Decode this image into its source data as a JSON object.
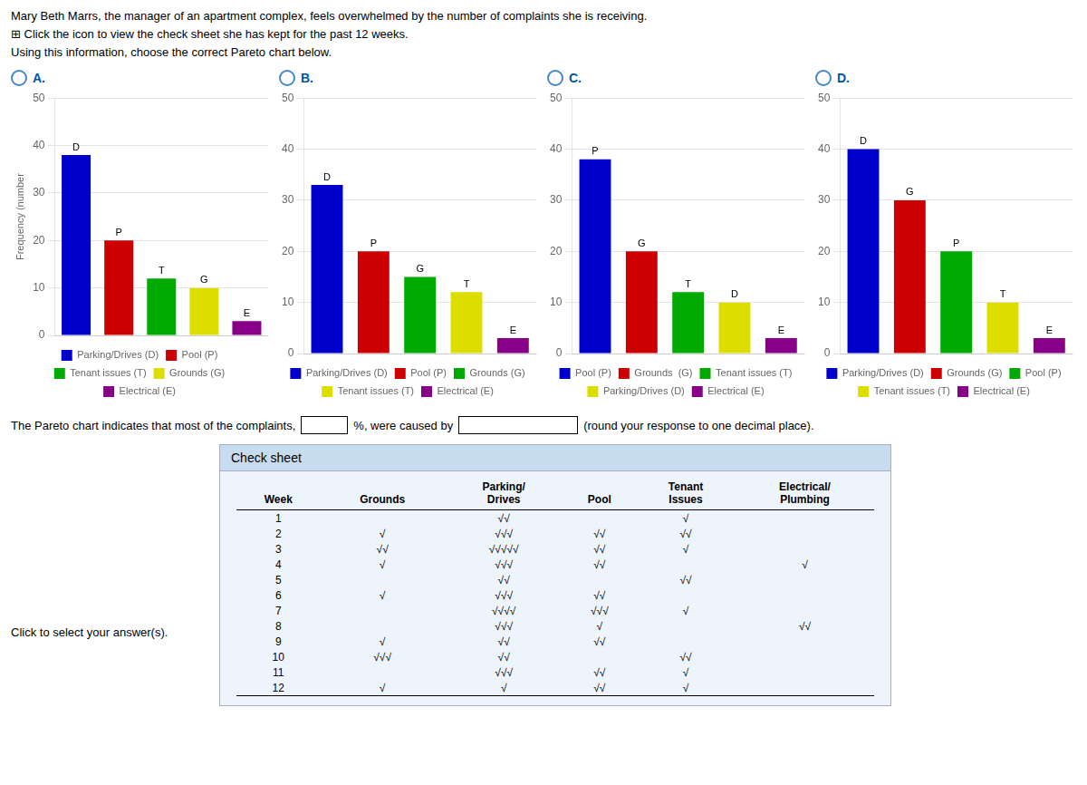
{
  "chart_data": [
    {
      "type": "bar",
      "title": "A.",
      "categories": [
        "D",
        "P",
        "T",
        "G",
        "E"
      ],
      "series": [
        {
          "name": "Parking/Drives (D)",
          "color": "#0000CC",
          "values": [
            38,
            null,
            null,
            null,
            null
          ]
        },
        {
          "name": "Pool (P)",
          "color": "#CC0000",
          "values": [
            null,
            20,
            null,
            null,
            null
          ]
        },
        {
          "name": "Tenant issues (T)",
          "color": "#00AA00",
          "values": [
            null,
            null,
            12,
            null,
            null
          ]
        },
        {
          "name": "Grounds (G)",
          "color": "#DDDD00",
          "values": [
            null,
            null,
            null,
            10,
            null
          ]
        },
        {
          "name": "Electrical (E)",
          "color": "#880088",
          "values": [
            null,
            null,
            null,
            null,
            3
          ]
        }
      ],
      "ylabel": "Frequency (number",
      "ylim": [
        0,
        50
      ],
      "yticks": [
        0,
        10,
        20,
        30,
        40,
        50
      ],
      "grid": true,
      "legend": "bottom",
      "tick_labels": "y"
    },
    {
      "type": "bar",
      "title": "B.",
      "categories": [
        "D",
        "P",
        "G",
        "T",
        "E"
      ],
      "series": [
        {
          "name": "Parking/Drives (D)",
          "color": "#0000CC",
          "values": [
            33,
            null,
            null,
            null,
            null
          ]
        },
        {
          "name": "Pool (P)",
          "color": "#CC0000",
          "values": [
            null,
            20,
            null,
            null,
            null
          ]
        },
        {
          "name": "Grounds (G)",
          "color": "#00AA00",
          "values": [
            null,
            null,
            15,
            null,
            null
          ]
        },
        {
          "name": "Tenant issues (T)",
          "color": "#DDDD00",
          "values": [
            null,
            null,
            null,
            12,
            null
          ]
        },
        {
          "name": "Electrical (E)",
          "color": "#880088",
          "values": [
            null,
            null,
            null,
            null,
            3
          ]
        }
      ],
      "ylim": [
        0,
        50
      ],
      "yticks": [
        0,
        10,
        20,
        30,
        40,
        50
      ],
      "grid": true,
      "legend": "bottom",
      "tick_labels": "y"
    },
    {
      "type": "bar",
      "title": "C.",
      "categories": [
        "P",
        "G",
        "T",
        "D",
        "E"
      ],
      "series": [
        {
          "name": "Pool (P)",
          "color": "#0000CC",
          "values": [
            38,
            null,
            null,
            null,
            null
          ]
        },
        {
          "name": "Grounds  (G)",
          "color": "#CC0000",
          "values": [
            null,
            20,
            null,
            null,
            null
          ]
        },
        {
          "name": "Tenant issues (T)",
          "color": "#00AA00",
          "values": [
            null,
            null,
            12,
            null,
            null
          ]
        },
        {
          "name": "Parking/Drives (D)",
          "color": "#DDDD00",
          "values": [
            null,
            null,
            null,
            10,
            null
          ]
        },
        {
          "name": "Electrical (E)",
          "color": "#880088",
          "values": [
            null,
            null,
            null,
            null,
            3
          ]
        }
      ],
      "ylim": [
        0,
        50
      ],
      "yticks": [
        0,
        10,
        20,
        30,
        40,
        50
      ],
      "grid": true,
      "legend": "bottom",
      "tick_labels": "y"
    },
    {
      "type": "bar",
      "title": "D.",
      "categories": [
        "D",
        "G",
        "P",
        "T",
        "E"
      ],
      "series": [
        {
          "name": "Parking/Drives (D)",
          "color": "#0000CC",
          "values": [
            40,
            null,
            null,
            null,
            null
          ]
        },
        {
          "name": "Grounds (G)",
          "color": "#CC0000",
          "values": [
            null,
            30,
            null,
            null,
            null
          ]
        },
        {
          "name": "Pool (P)",
          "color": "#00AA00",
          "values": [
            null,
            null,
            20,
            null,
            null
          ]
        },
        {
          "name": "Tenant issues (T)",
          "color": "#DDDD00",
          "values": [
            null,
            null,
            null,
            10,
            null
          ]
        },
        {
          "name": "Electrical (E)",
          "color": "#880088",
          "values": [
            null,
            null,
            null,
            null,
            3
          ]
        }
      ],
      "ylim": [
        0,
        50
      ],
      "yticks": [
        0,
        10,
        20,
        30,
        40,
        50
      ],
      "grid": true,
      "legend": "bottom",
      "tick_labels": "y"
    }
  ],
  "intro": [
    "Mary Beth Marrs, the manager of an apartment complex, feels overwhelmed by the number of complaints she is receiving.",
    "⊞  Click the icon to view the check sheet she has kept for the past 12 weeks.",
    "Using this information, choose the correct Pareto chart below."
  ],
  "statement": [
    "The Pareto chart indicates that most of the complaints,",
    "%, were caused by",
    "(round your response to one decimal place)."
  ],
  "footer": "Click to select your answer(s).",
  "check_sheet": {
    "title": "Check sheet",
    "headers": [
      "Week",
      "Grounds",
      "Parking/\nDrives",
      "Pool",
      "Tenant\nIssues",
      "Electrical/\nPlumbing"
    ],
    "rows": [
      [
        "1",
        "",
        "√√",
        "",
        "√",
        ""
      ],
      [
        "2",
        "√",
        "√√√",
        "√√",
        "√√",
        ""
      ],
      [
        "3",
        "√√",
        "√√√√√",
        "√√",
        "√",
        ""
      ],
      [
        "4",
        "√",
        "√√√",
        "√√",
        "",
        "√"
      ],
      [
        "5",
        "",
        "√√",
        "",
        "√√",
        ""
      ],
      [
        "6",
        "√",
        "√√√",
        "√√",
        "",
        ""
      ],
      [
        "7",
        "",
        "√√√√",
        "√√√",
        "√",
        ""
      ],
      [
        "8",
        "",
        "√√√",
        "√",
        "",
        "√√"
      ],
      [
        "9",
        "√",
        "√√",
        "√√",
        "",
        ""
      ],
      [
        "10",
        "√√√",
        "√√",
        "",
        "√√",
        ""
      ],
      [
        "11",
        "",
        "√√√",
        "√√",
        "√",
        ""
      ],
      [
        "12",
        "√",
        "√",
        "√√",
        "√",
        ""
      ]
    ]
  }
}
